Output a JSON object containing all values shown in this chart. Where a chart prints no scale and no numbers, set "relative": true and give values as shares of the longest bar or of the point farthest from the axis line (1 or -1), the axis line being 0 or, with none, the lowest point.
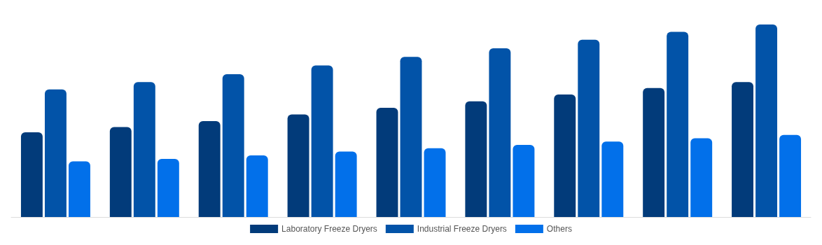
{
  "chart_data": {
    "type": "bar",
    "relative": true,
    "categories": [
      null,
      null,
      null,
      null,
      null,
      null,
      null,
      null,
      null
    ],
    "legend": "bottom",
    "series": [
      {
        "name": "Laboratory Freeze Dryers",
        "color": "#023b7a",
        "values": [
          0.44,
          0.467,
          0.498,
          0.533,
          0.567,
          0.601,
          0.636,
          0.67,
          0.701
        ]
      },
      {
        "name": "Industrial Freeze Dryers",
        "color": "#0253a8",
        "values": [
          0.663,
          0.701,
          0.742,
          0.787,
          0.832,
          0.876,
          0.921,
          0.962,
          1
        ]
      },
      {
        "name": "Others",
        "color": "#0270ea",
        "values": [
          0.289,
          0.302,
          0.32,
          0.34,
          0.357,
          0.375,
          0.392,
          0.409,
          0.426
        ]
      }
    ]
  }
}
